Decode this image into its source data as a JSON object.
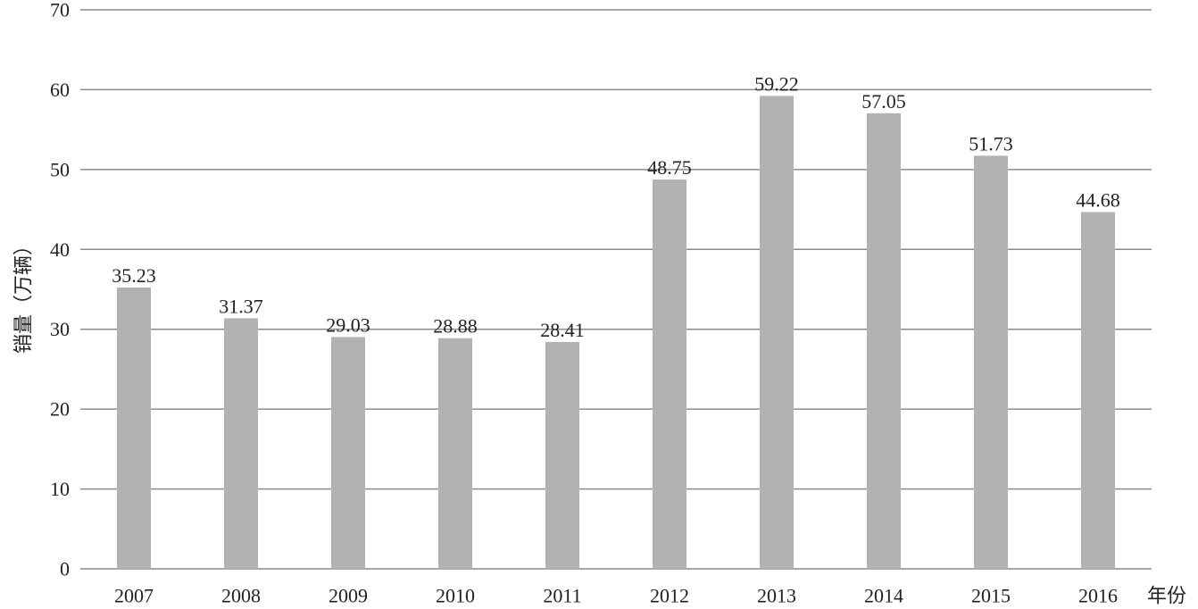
{
  "chart_data": {
    "type": "bar",
    "categories": [
      "2007",
      "2008",
      "2009",
      "2010",
      "2011",
      "2012",
      "2013",
      "2014",
      "2015",
      "2016"
    ],
    "values": [
      35.23,
      31.37,
      29.03,
      28.88,
      28.41,
      48.75,
      59.22,
      57.05,
      51.73,
      44.68
    ],
    "value_labels": [
      "35.23",
      "31.37",
      "29.03",
      "28.88",
      "28.41",
      "48.75",
      "59.22",
      "57.05",
      "51.73",
      "44.68"
    ],
    "xlabel": "年份",
    "ylabel": "销量（万辆）",
    "ylim": [
      0,
      70
    ],
    "yticks": [
      "0",
      "10",
      "20",
      "30",
      "40",
      "50",
      "60",
      "70"
    ],
    "grid": "horizontal",
    "bar_color": "#b2b2b2",
    "grid_color": "#8c8c8c"
  }
}
